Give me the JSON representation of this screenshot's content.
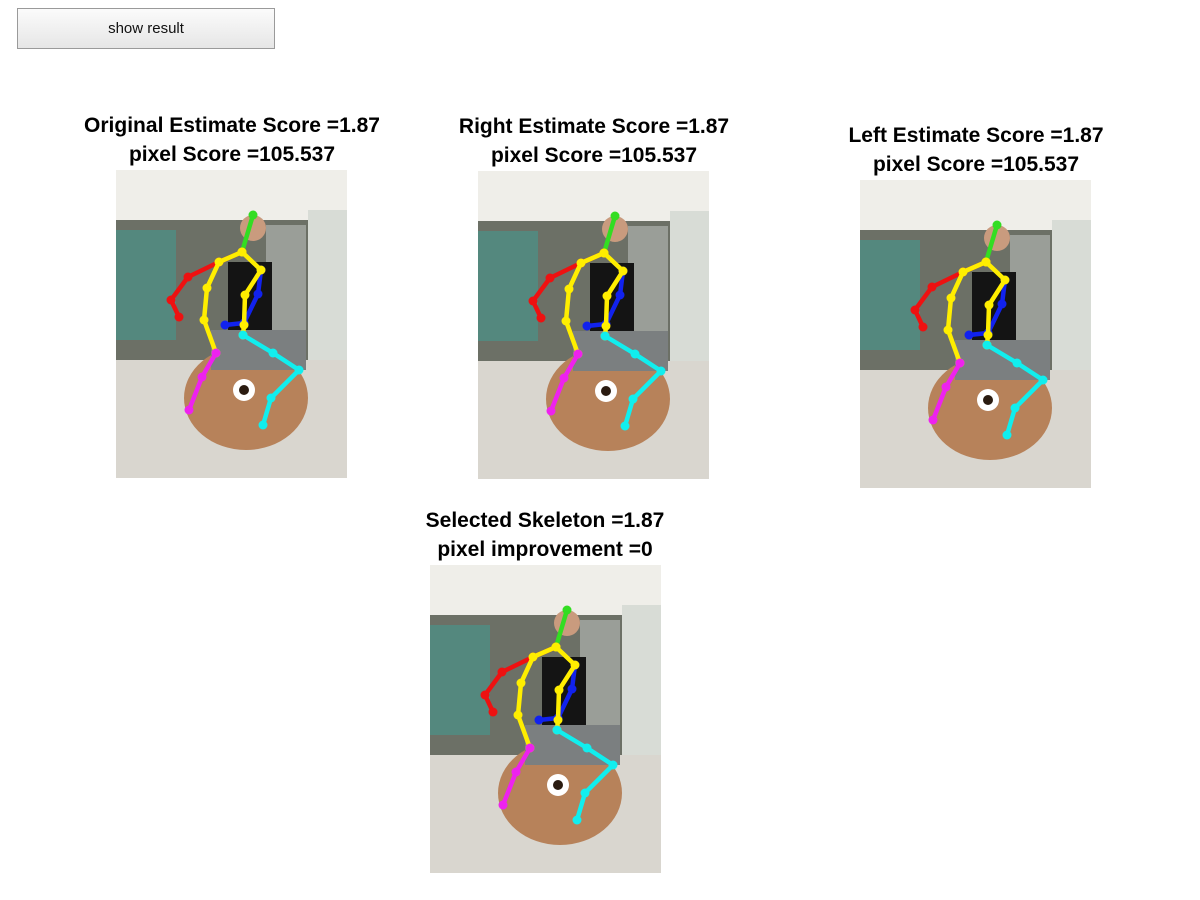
{
  "toolbar": {
    "show_result_label": "show result"
  },
  "panels": [
    {
      "id": "original",
      "line1": "Original Estimate Score =1.87",
      "line2": "pixel Score =105.537"
    },
    {
      "id": "right",
      "line1": "Right Estimate Score =1.87",
      "line2": "pixel Score =105.537"
    },
    {
      "id": "left",
      "line1": "Left Estimate Score =1.87",
      "line2": "pixel Score =105.537"
    },
    {
      "id": "selected",
      "line1": "Selected Skeleton =1.87",
      "line2": "pixel improvement =0"
    }
  ],
  "skeleton_colors": {
    "head": "#33dd22",
    "torso": "#ffee00",
    "right_arm": "#ee1111",
    "left_arm": "#1122ee",
    "right_leg": "#ee22ee",
    "left_leg": "#11eeee"
  }
}
